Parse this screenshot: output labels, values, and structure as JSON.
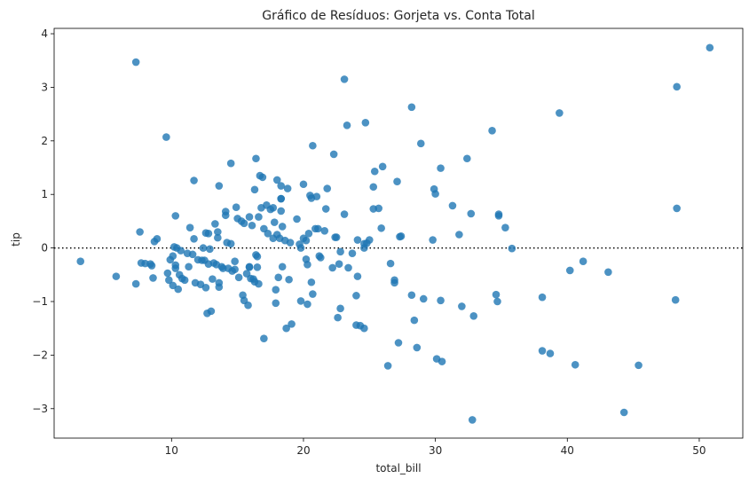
{
  "chart_data": {
    "type": "scatter",
    "title": "Gráfico de Resíduos: Gorjeta vs. Conta Total",
    "xlabel": "total_bill",
    "ylabel": "tip",
    "xlim": [
      1.1,
      53.3
    ],
    "ylim": [
      -3.55,
      4.1
    ],
    "xticks": [
      10,
      20,
      30,
      40,
      50
    ],
    "yticks": [
      -3,
      -2,
      -1,
      0,
      1,
      2,
      3,
      4
    ],
    "reference_line": {
      "y": 0,
      "style": "dotted"
    },
    "grid": false,
    "legend": "none",
    "point_color": "#1f77b4",
    "series": [
      {
        "points": [
          [
            3.1,
            -0.25
          ],
          [
            5.8,
            -0.53
          ],
          [
            7.3,
            3.47
          ],
          [
            7.3,
            -0.67
          ],
          [
            7.6,
            0.3
          ],
          [
            7.7,
            -0.28
          ],
          [
            8.0,
            -0.29
          ],
          [
            8.4,
            -0.3
          ],
          [
            8.5,
            -0.33
          ],
          [
            8.6,
            -0.56
          ],
          [
            8.7,
            0.12
          ],
          [
            8.9,
            0.17
          ],
          [
            9.6,
            2.07
          ],
          [
            9.7,
            -0.47
          ],
          [
            9.8,
            -0.6
          ],
          [
            9.9,
            -0.22
          ],
          [
            10.1,
            -0.7
          ],
          [
            10.1,
            -0.15
          ],
          [
            10.2,
            0.02
          ],
          [
            10.3,
            -0.32
          ],
          [
            10.3,
            -0.38
          ],
          [
            10.3,
            0.6
          ],
          [
            10.4,
            0.0
          ],
          [
            10.5,
            -0.77
          ],
          [
            10.6,
            -0.5
          ],
          [
            10.7,
            -0.05
          ],
          [
            10.8,
            -0.57
          ],
          [
            11.0,
            -0.6
          ],
          [
            11.2,
            -0.1
          ],
          [
            11.3,
            -0.35
          ],
          [
            11.4,
            0.38
          ],
          [
            11.6,
            -0.12
          ],
          [
            11.7,
            1.26
          ],
          [
            11.7,
            0.17
          ],
          [
            11.8,
            -0.65
          ],
          [
            12.0,
            -0.22
          ],
          [
            12.2,
            -0.68
          ],
          [
            12.3,
            -0.23
          ],
          [
            12.4,
            0.0
          ],
          [
            12.5,
            -0.23
          ],
          [
            12.6,
            -0.74
          ],
          [
            12.6,
            0.28
          ],
          [
            12.7,
            -1.22
          ],
          [
            12.8,
            0.27
          ],
          [
            12.8,
            -0.3
          ],
          [
            12.9,
            -0.02
          ],
          [
            13.0,
            -1.18
          ],
          [
            13.1,
            -0.58
          ],
          [
            13.2,
            -0.28
          ],
          [
            13.3,
            0.45
          ],
          [
            13.4,
            -0.31
          ],
          [
            13.5,
            0.19
          ],
          [
            13.5,
            0.3
          ],
          [
            13.6,
            1.16
          ],
          [
            13.6,
            -0.65
          ],
          [
            13.6,
            -0.73
          ],
          [
            13.8,
            -0.35
          ],
          [
            13.9,
            -0.38
          ],
          [
            14.1,
            0.68
          ],
          [
            14.1,
            0.61
          ],
          [
            14.2,
            0.1
          ],
          [
            14.3,
            -0.38
          ],
          [
            14.5,
            1.58
          ],
          [
            14.5,
            0.08
          ],
          [
            14.6,
            -0.43
          ],
          [
            14.8,
            -0.4
          ],
          [
            14.8,
            -0.25
          ],
          [
            14.9,
            0.76
          ],
          [
            15.0,
            0.55
          ],
          [
            15.1,
            -0.55
          ],
          [
            15.3,
            0.5
          ],
          [
            15.4,
            -0.88
          ],
          [
            15.5,
            -0.98
          ],
          [
            15.5,
            0.46
          ],
          [
            15.7,
            -0.48
          ],
          [
            15.8,
            -1.07
          ],
          [
            15.9,
            0.58
          ],
          [
            15.9,
            -0.35
          ],
          [
            15.9,
            -0.36
          ],
          [
            16.0,
            -0.57
          ],
          [
            16.1,
            0.42
          ],
          [
            16.2,
            -0.58
          ],
          [
            16.3,
            1.09
          ],
          [
            16.3,
            -0.63
          ],
          [
            16.4,
            1.67
          ],
          [
            16.4,
            -0.13
          ],
          [
            16.5,
            -0.36
          ],
          [
            16.5,
            -0.16
          ],
          [
            16.6,
            -0.67
          ],
          [
            16.6,
            0.58
          ],
          [
            16.7,
            1.35
          ],
          [
            16.8,
            0.75
          ],
          [
            16.9,
            1.32
          ],
          [
            17.0,
            -1.69
          ],
          [
            17.0,
            0.36
          ],
          [
            17.2,
            0.8
          ],
          [
            17.3,
            0.27
          ],
          [
            17.5,
            0.72
          ],
          [
            17.7,
            0.75
          ],
          [
            17.7,
            0.18
          ],
          [
            17.8,
            0.48
          ],
          [
            17.9,
            -1.03
          ],
          [
            17.9,
            -0.78
          ],
          [
            18.0,
            1.27
          ],
          [
            18.0,
            0.25
          ],
          [
            18.1,
            -0.55
          ],
          [
            18.2,
            0.18
          ],
          [
            18.3,
            1.16
          ],
          [
            18.3,
            0.69
          ],
          [
            18.3,
            0.92
          ],
          [
            18.3,
            0.92
          ],
          [
            18.4,
            0.4
          ],
          [
            18.4,
            -0.35
          ],
          [
            18.6,
            0.14
          ],
          [
            18.7,
            -1.5
          ],
          [
            18.8,
            1.11
          ],
          [
            18.9,
            -0.59
          ],
          [
            19.0,
            0.1
          ],
          [
            19.1,
            -1.42
          ],
          [
            19.5,
            0.54
          ],
          [
            19.7,
            0.07
          ],
          [
            19.8,
            0.0
          ],
          [
            19.8,
            -0.99
          ],
          [
            20.0,
            0.18
          ],
          [
            20.0,
            1.19
          ],
          [
            20.2,
            0.14
          ],
          [
            20.2,
            -0.21
          ],
          [
            20.3,
            -0.31
          ],
          [
            20.3,
            -1.05
          ],
          [
            20.4,
            0.27
          ],
          [
            20.5,
            0.98
          ],
          [
            20.6,
            0.93
          ],
          [
            20.6,
            -0.64
          ],
          [
            20.7,
            1.91
          ],
          [
            20.7,
            -0.86
          ],
          [
            20.9,
            0.36
          ],
          [
            21.0,
            0.96
          ],
          [
            21.1,
            0.36
          ],
          [
            21.2,
            -0.15
          ],
          [
            21.3,
            -0.18
          ],
          [
            21.6,
            0.32
          ],
          [
            21.7,
            0.73
          ],
          [
            21.8,
            1.11
          ],
          [
            22.2,
            -0.37
          ],
          [
            22.3,
            1.75
          ],
          [
            22.4,
            0.2
          ],
          [
            22.5,
            0.2
          ],
          [
            22.6,
            -1.3
          ],
          [
            22.7,
            -0.3
          ],
          [
            22.8,
            -1.13
          ],
          [
            22.8,
            -0.07
          ],
          [
            23.1,
            0.63
          ],
          [
            23.1,
            3.15
          ],
          [
            23.3,
            2.29
          ],
          [
            23.4,
            -0.37
          ],
          [
            23.7,
            -0.1
          ],
          [
            24.0,
            -0.89
          ],
          [
            24.0,
            -1.44
          ],
          [
            24.1,
            -0.53
          ],
          [
            24.1,
            0.15
          ],
          [
            24.3,
            -1.45
          ],
          [
            24.6,
            0.0
          ],
          [
            24.6,
            -1.5
          ],
          [
            24.6,
            0.08
          ],
          [
            24.7,
            2.34
          ],
          [
            24.8,
            0.09
          ],
          [
            25.0,
            0.15
          ],
          [
            25.3,
            1.14
          ],
          [
            25.3,
            0.73
          ],
          [
            25.4,
            1.43
          ],
          [
            25.7,
            0.74
          ],
          [
            25.9,
            0.37
          ],
          [
            26.0,
            1.52
          ],
          [
            26.4,
            -2.2
          ],
          [
            26.6,
            -0.29
          ],
          [
            26.9,
            -0.6
          ],
          [
            26.9,
            -0.65
          ],
          [
            27.1,
            1.24
          ],
          [
            27.2,
            -1.77
          ],
          [
            27.3,
            0.21
          ],
          [
            27.4,
            0.22
          ],
          [
            28.2,
            2.63
          ],
          [
            28.2,
            -0.88
          ],
          [
            28.4,
            -1.35
          ],
          [
            28.6,
            -1.86
          ],
          [
            28.9,
            1.95
          ],
          [
            29.1,
            -0.95
          ],
          [
            29.8,
            0.15
          ],
          [
            29.9,
            1.1
          ],
          [
            30.0,
            1.01
          ],
          [
            30.1,
            -2.07
          ],
          [
            30.4,
            -0.98
          ],
          [
            30.4,
            1.49
          ],
          [
            30.5,
            -2.12
          ],
          [
            31.3,
            0.79
          ],
          [
            31.8,
            0.25
          ],
          [
            32.0,
            -1.09
          ],
          [
            32.4,
            1.67
          ],
          [
            32.7,
            0.64
          ],
          [
            32.8,
            -3.21
          ],
          [
            32.9,
            -1.27
          ],
          [
            34.3,
            2.19
          ],
          [
            34.6,
            -0.87
          ],
          [
            34.7,
            -1.0
          ],
          [
            34.8,
            0.63
          ],
          [
            34.8,
            0.6
          ],
          [
            35.3,
            0.38
          ],
          [
            35.8,
            -0.01
          ],
          [
            38.1,
            -0.92
          ],
          [
            38.1,
            -1.92
          ],
          [
            38.7,
            -1.97
          ],
          [
            39.4,
            2.52
          ],
          [
            40.2,
            -0.42
          ],
          [
            40.6,
            -2.18
          ],
          [
            41.2,
            -0.25
          ],
          [
            43.1,
            -0.45
          ],
          [
            44.3,
            -3.07
          ],
          [
            45.4,
            -2.19
          ],
          [
            48.2,
            -0.97
          ],
          [
            48.3,
            0.74
          ],
          [
            48.3,
            3.01
          ],
          [
            50.8,
            3.74
          ]
        ]
      }
    ]
  }
}
